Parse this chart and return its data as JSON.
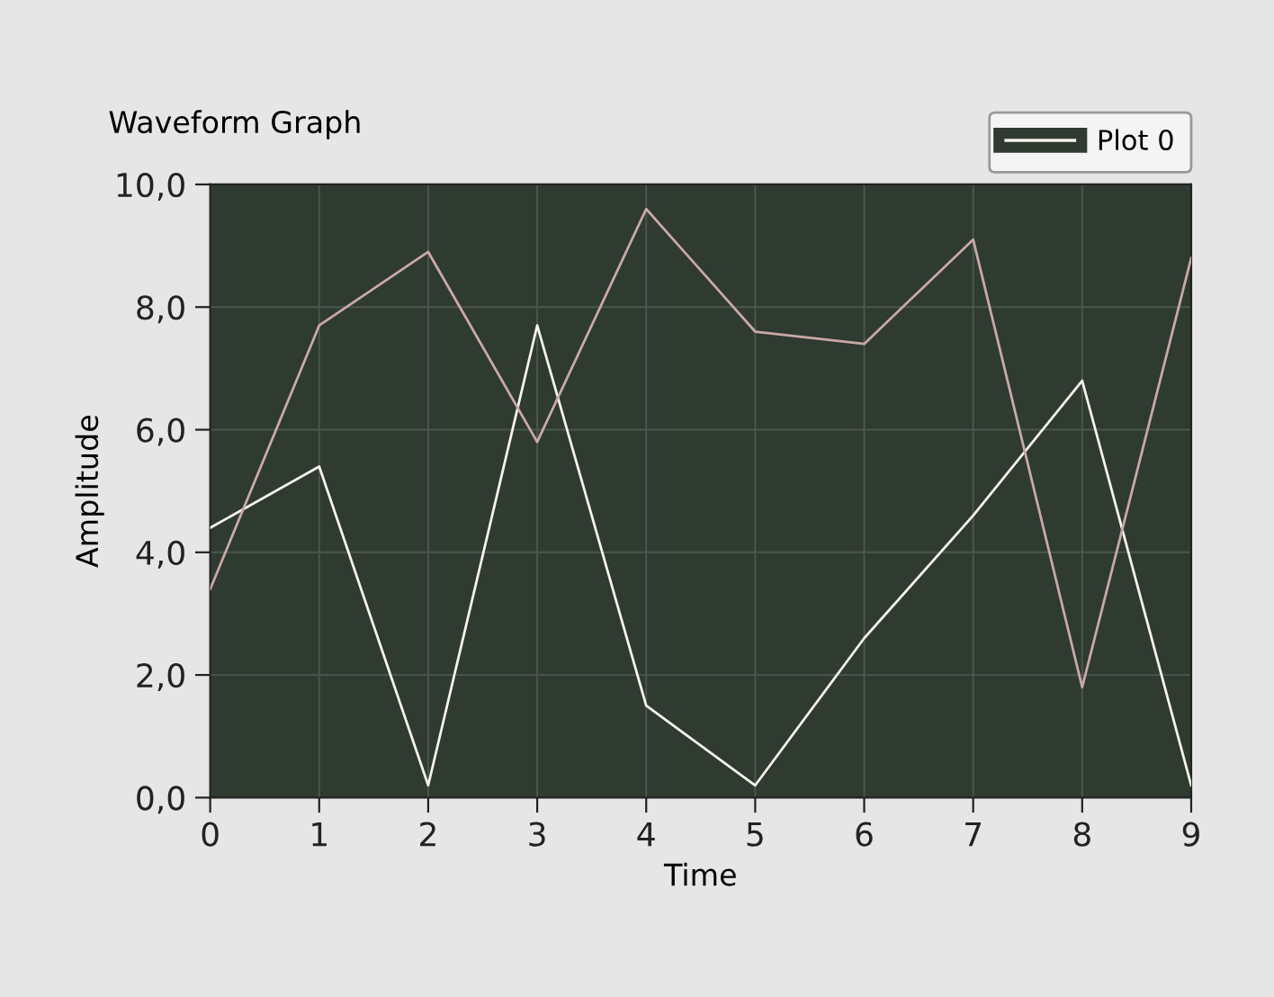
{
  "chart_data": {
    "type": "line",
    "title": "Waveform Graph",
    "xlabel": "Time",
    "ylabel": "Amplitude",
    "x": [
      0,
      1,
      2,
      3,
      4,
      5,
      6,
      7,
      8,
      9
    ],
    "series": [
      {
        "name": "Plot 0",
        "color": "#f4f4ea",
        "values": [
          4.4,
          5.4,
          0.2,
          7.7,
          1.5,
          0.2,
          2.6,
          4.6,
          6.8,
          0.2
        ]
      },
      {
        "color": "#c9a9a6",
        "values": [
          3.4,
          7.7,
          8.9,
          5.8,
          9.6,
          7.6,
          7.4,
          9.1,
          1.8,
          8.8
        ]
      }
    ],
    "xlim": [
      0,
      9
    ],
    "xticks": [
      0,
      1,
      2,
      3,
      4,
      5,
      6,
      7,
      8,
      9
    ],
    "ylim": [
      0,
      10
    ],
    "yticks": [
      {
        "value": 0,
        "label": "0,0"
      },
      {
        "value": 2,
        "label": "2,0"
      },
      {
        "value": 4,
        "label": "4,0"
      },
      {
        "value": 6,
        "label": "6,0"
      },
      {
        "value": 8,
        "label": "8,0"
      },
      {
        "value": 10,
        "label": "10,0"
      }
    ],
    "grid": true,
    "legend": "top right",
    "marker": "none",
    "line_style": "solid"
  }
}
